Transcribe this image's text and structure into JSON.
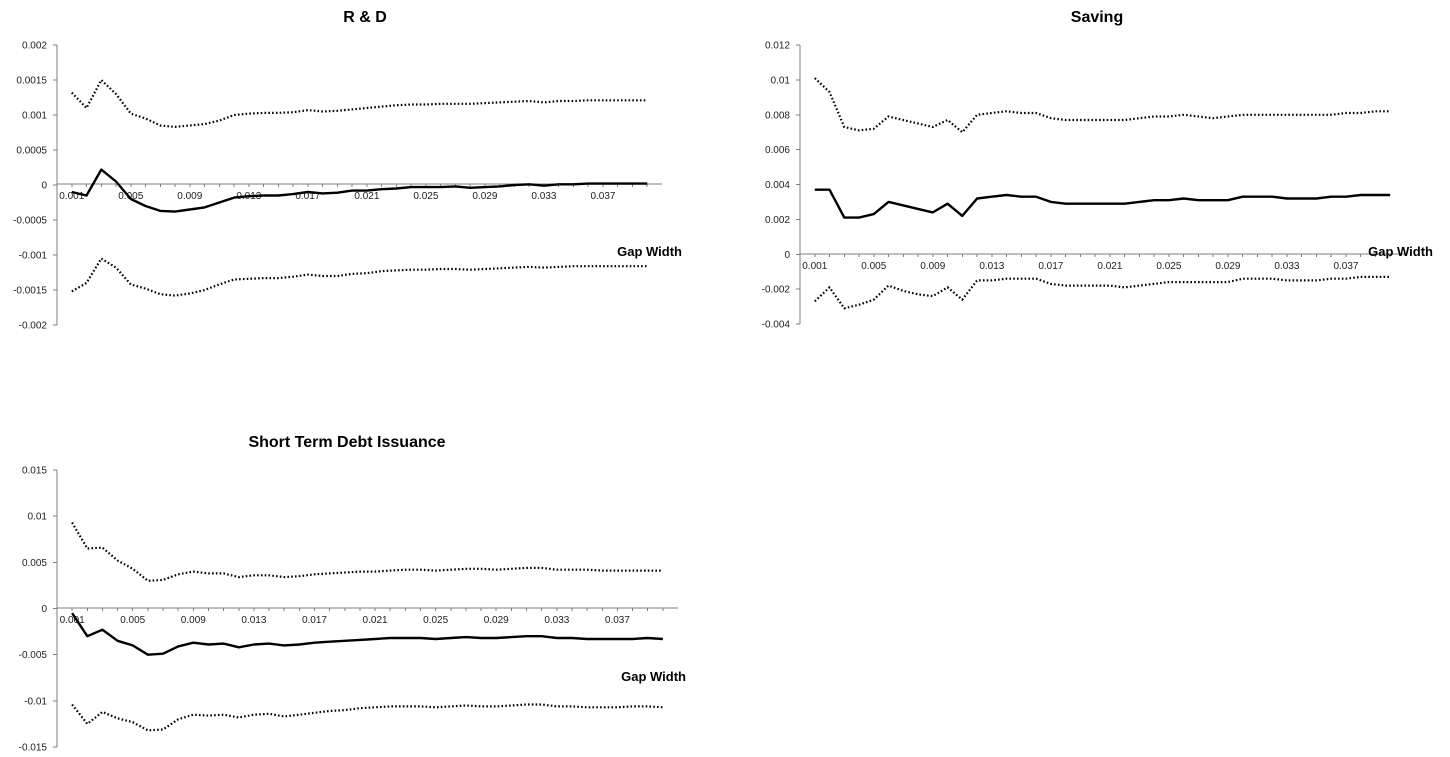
{
  "chart_data": [
    {
      "type": "line",
      "title": "R & D",
      "xlabel": "Gap Width",
      "ylabel": "",
      "ylim": [
        -0.002,
        0.002
      ],
      "yticks": [
        "0.002",
        "0.0015",
        "0.001",
        "0.0005",
        "0",
        "-0.0005",
        "-0.001",
        "-0.0015",
        "-0.002"
      ],
      "xticks": [
        "0.001",
        "0.005",
        "0.009",
        "0.013",
        "0.017",
        "0.021",
        "0.025",
        "0.029",
        "0.033",
        "0.037"
      ],
      "x_start": 0.001,
      "x_step": 0.001,
      "series": [
        {
          "style": "dotted",
          "values": [
            0.00132,
            0.0011,
            0.0015,
            0.0013,
            0.00102,
            0.00095,
            0.00085,
            0.00083,
            0.00085,
            0.00087,
            0.00092,
            0.001,
            0.00102,
            0.00103,
            0.00103,
            0.00104,
            0.00107,
            0.00105,
            0.00106,
            0.00108,
            0.0011,
            0.00112,
            0.00114,
            0.00115,
            0.00115,
            0.00116,
            0.00116,
            0.00116,
            0.00117,
            0.00118,
            0.00119,
            0.0012,
            0.00118,
            0.0012,
            0.0012,
            0.00121,
            0.00121,
            0.00121,
            0.00121,
            0.00121
          ]
        },
        {
          "style": "solid",
          "values": [
            -0.0001,
            -0.00015,
            0.00022,
            5e-05,
            -0.0002,
            -0.0003,
            -0.00037,
            -0.00038,
            -0.00035,
            -0.00032,
            -0.00025,
            -0.00018,
            -0.00016,
            -0.00015,
            -0.00015,
            -0.00013,
            -0.0001,
            -0.00012,
            -0.00011,
            -8e-05,
            -8e-05,
            -6e-05,
            -5e-05,
            -3e-05,
            -3e-05,
            -3e-05,
            -2e-05,
            -4e-05,
            -3e-05,
            -2e-05,
            0.0,
            1e-05,
            -1e-05,
            1e-05,
            1e-05,
            2e-05,
            2e-05,
            2e-05,
            2e-05,
            2e-05
          ]
        },
        {
          "style": "dotted",
          "values": [
            -0.00152,
            -0.0014,
            -0.00105,
            -0.00118,
            -0.00142,
            -0.00148,
            -0.00156,
            -0.00158,
            -0.00155,
            -0.0015,
            -0.00142,
            -0.00135,
            -0.00134,
            -0.00133,
            -0.00133,
            -0.00131,
            -0.00128,
            -0.0013,
            -0.0013,
            -0.00127,
            -0.00126,
            -0.00123,
            -0.00122,
            -0.00121,
            -0.00121,
            -0.0012,
            -0.0012,
            -0.00121,
            -0.0012,
            -0.00119,
            -0.00118,
            -0.00117,
            -0.00118,
            -0.00117,
            -0.00116,
            -0.00116,
            -0.00116,
            -0.00116,
            -0.00116,
            -0.00116
          ]
        }
      ]
    },
    {
      "type": "line",
      "title": "Saving",
      "xlabel": "Gap Width",
      "ylabel": "",
      "ylim": [
        -0.004,
        0.012
      ],
      "yticks": [
        "0.012",
        "0.01",
        "0.008",
        "0.006",
        "0.004",
        "0.002",
        "0",
        "-0.002",
        "-0.004"
      ],
      "xticks": [
        "0.001",
        "0.005",
        "0.009",
        "0.013",
        "0.017",
        "0.021",
        "0.025",
        "0.029",
        "0.033",
        "0.037"
      ],
      "x_start": 0.001,
      "x_step": 0.001,
      "series": [
        {
          "style": "dotted",
          "values": [
            0.0101,
            0.0093,
            0.0073,
            0.0071,
            0.0072,
            0.0079,
            0.0077,
            0.0075,
            0.0073,
            0.0077,
            0.007,
            0.008,
            0.0081,
            0.0082,
            0.0081,
            0.0081,
            0.0078,
            0.0077,
            0.0077,
            0.0077,
            0.0077,
            0.0077,
            0.0078,
            0.0079,
            0.0079,
            0.008,
            0.0079,
            0.0078,
            0.0079,
            0.008,
            0.008,
            0.008,
            0.008,
            0.008,
            0.008,
            0.008,
            0.0081,
            0.0081,
            0.0082,
            0.0082
          ]
        },
        {
          "style": "solid",
          "values": [
            0.0037,
            0.0037,
            0.0021,
            0.0021,
            0.0023,
            0.003,
            0.0028,
            0.0026,
            0.0024,
            0.0029,
            0.0022,
            0.0032,
            0.0033,
            0.0034,
            0.0033,
            0.0033,
            0.003,
            0.0029,
            0.0029,
            0.0029,
            0.0029,
            0.0029,
            0.003,
            0.0031,
            0.0031,
            0.0032,
            0.0031,
            0.0031,
            0.0031,
            0.0033,
            0.0033,
            0.0033,
            0.0032,
            0.0032,
            0.0032,
            0.0033,
            0.0033,
            0.0034,
            0.0034,
            0.0034
          ]
        },
        {
          "style": "dotted",
          "values": [
            -0.0027,
            -0.0019,
            -0.0031,
            -0.0029,
            -0.0026,
            -0.0018,
            -0.0021,
            -0.0023,
            -0.0024,
            -0.0019,
            -0.0026,
            -0.0015,
            -0.0015,
            -0.0014,
            -0.0014,
            -0.0014,
            -0.0017,
            -0.0018,
            -0.0018,
            -0.0018,
            -0.0018,
            -0.0019,
            -0.0018,
            -0.0017,
            -0.0016,
            -0.0016,
            -0.0016,
            -0.0016,
            -0.0016,
            -0.0014,
            -0.0014,
            -0.0014,
            -0.0015,
            -0.0015,
            -0.0015,
            -0.0014,
            -0.0014,
            -0.0013,
            -0.0013,
            -0.0013
          ]
        }
      ]
    },
    {
      "type": "line",
      "title": "Short Term Debt Issuance",
      "xlabel": "Gap Width",
      "ylabel": "",
      "ylim": [
        -0.015,
        0.015
      ],
      "yticks": [
        "0.015",
        "0.01",
        "0.005",
        "0",
        "-0.005",
        "-0.01",
        "-0.015"
      ],
      "xticks": [
        "0.001",
        "0.005",
        "0.009",
        "0.013",
        "0.017",
        "0.021",
        "0.025",
        "0.029",
        "0.033",
        "0.037"
      ],
      "x_start": 0.001,
      "x_step": 0.001,
      "series": [
        {
          "style": "dotted",
          "values": [
            0.0093,
            0.0065,
            0.0066,
            0.0052,
            0.0043,
            0.003,
            0.0031,
            0.0037,
            0.004,
            0.0038,
            0.0038,
            0.0034,
            0.0036,
            0.0036,
            0.0034,
            0.0035,
            0.0037,
            0.0038,
            0.0039,
            0.004,
            0.004,
            0.0041,
            0.0042,
            0.0042,
            0.0041,
            0.0042,
            0.0043,
            0.0043,
            0.0042,
            0.0043,
            0.0044,
            0.0044,
            0.0042,
            0.0042,
            0.0042,
            0.0041,
            0.0041,
            0.0041,
            0.0041,
            0.0041
          ]
        },
        {
          "style": "solid",
          "values": [
            -0.0005,
            -0.003,
            -0.0023,
            -0.0035,
            -0.004,
            -0.005,
            -0.0049,
            -0.0041,
            -0.0037,
            -0.0039,
            -0.0038,
            -0.0042,
            -0.0039,
            -0.0038,
            -0.004,
            -0.0039,
            -0.0037,
            -0.0036,
            -0.0035,
            -0.0034,
            -0.0033,
            -0.0032,
            -0.0032,
            -0.0032,
            -0.0033,
            -0.0032,
            -0.0031,
            -0.0032,
            -0.0032,
            -0.0031,
            -0.003,
            -0.003,
            -0.0032,
            -0.0032,
            -0.0033,
            -0.0033,
            -0.0033,
            -0.0033,
            -0.0032,
            -0.0033
          ]
        },
        {
          "style": "dotted",
          "values": [
            -0.0104,
            -0.0125,
            -0.0112,
            -0.0119,
            -0.0123,
            -0.0132,
            -0.0131,
            -0.012,
            -0.0115,
            -0.0116,
            -0.0115,
            -0.0118,
            -0.0115,
            -0.0114,
            -0.0117,
            -0.0115,
            -0.0113,
            -0.0111,
            -0.011,
            -0.0108,
            -0.0107,
            -0.0106,
            -0.0106,
            -0.0106,
            -0.0107,
            -0.0106,
            -0.0105,
            -0.0106,
            -0.0106,
            -0.0105,
            -0.0104,
            -0.0104,
            -0.0106,
            -0.0106,
            -0.0107,
            -0.0107,
            -0.0107,
            -0.0106,
            -0.0106,
            -0.0107
          ]
        }
      ]
    }
  ]
}
